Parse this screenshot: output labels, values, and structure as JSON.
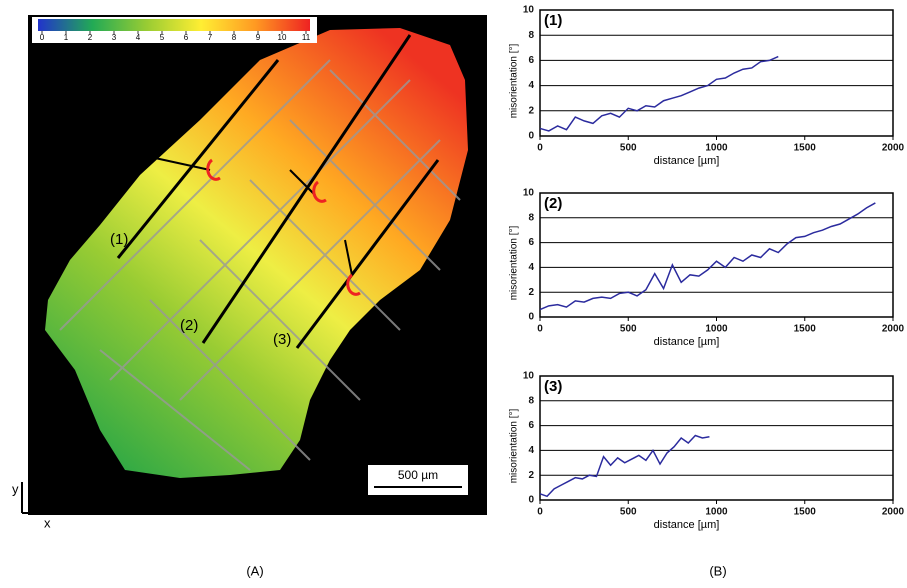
{
  "chart_data": [
    {
      "type": "line",
      "title": "(1)",
      "x_label": "distance [µm]",
      "y_label": "misorientation [°]",
      "xlim": [
        0,
        2000
      ],
      "xticks": [
        0,
        500,
        1000,
        1500,
        2000
      ],
      "ylim": [
        0,
        10
      ],
      "yticks": [
        0,
        2,
        4,
        6,
        8,
        10
      ],
      "grid": true,
      "series": [
        {
          "color": "#2b2b9e",
          "x": [
            0,
            50,
            100,
            150,
            200,
            250,
            300,
            350,
            400,
            450,
            500,
            550,
            600,
            650,
            700,
            750,
            800,
            850,
            900,
            950,
            1000,
            1050,
            1100,
            1150,
            1200,
            1250,
            1300,
            1350
          ],
          "values": [
            0.6,
            0.4,
            0.8,
            0.5,
            1.5,
            1.2,
            1.0,
            1.6,
            1.8,
            1.5,
            2.2,
            2.0,
            2.4,
            2.3,
            2.8,
            3.0,
            3.2,
            3.5,
            3.8,
            4.0,
            4.5,
            4.6,
            5.0,
            5.3,
            5.4,
            5.9,
            6.0,
            6.3
          ]
        }
      ]
    },
    {
      "type": "line",
      "title": "(2)",
      "x_label": "distance [µm]",
      "y_label": "misorientation [°]",
      "xlim": [
        0,
        2000
      ],
      "xticks": [
        0,
        500,
        1000,
        1500,
        2000
      ],
      "ylim": [
        0,
        10
      ],
      "yticks": [
        0,
        2,
        4,
        6,
        8,
        10
      ],
      "grid": true,
      "series": [
        {
          "color": "#2b2b9e",
          "x": [
            0,
            50,
            100,
            150,
            200,
            250,
            300,
            350,
            400,
            450,
            500,
            550,
            600,
            650,
            700,
            750,
            800,
            850,
            900,
            950,
            1000,
            1050,
            1100,
            1150,
            1200,
            1250,
            1300,
            1350,
            1400,
            1450,
            1500,
            1550,
            1600,
            1650,
            1700,
            1750,
            1800,
            1850,
            1900
          ],
          "values": [
            0.6,
            0.9,
            1.0,
            0.8,
            1.3,
            1.2,
            1.5,
            1.6,
            1.5,
            1.9,
            2.0,
            1.7,
            2.2,
            3.5,
            2.3,
            4.2,
            2.8,
            3.4,
            3.3,
            3.8,
            4.5,
            4.0,
            4.8,
            4.5,
            5.0,
            4.8,
            5.5,
            5.2,
            5.9,
            6.4,
            6.5,
            6.8,
            7.0,
            7.3,
            7.5,
            7.9,
            8.3,
            8.8,
            9.2
          ]
        }
      ]
    },
    {
      "type": "line",
      "title": "(3)",
      "x_label": "distance [µm]",
      "y_label": "misorientation [°]",
      "xlim": [
        0,
        2000
      ],
      "xticks": [
        0,
        500,
        1000,
        1500,
        2000
      ],
      "ylim": [
        0,
        10
      ],
      "yticks": [
        0,
        2,
        4,
        6,
        8,
        10
      ],
      "grid": true,
      "series": [
        {
          "color": "#2b2b9e",
          "x": [
            0,
            40,
            80,
            120,
            160,
            200,
            240,
            280,
            320,
            360,
            400,
            440,
            480,
            520,
            560,
            600,
            640,
            680,
            720,
            760,
            800,
            840,
            880,
            920,
            960
          ],
          "values": [
            0.5,
            0.3,
            0.9,
            1.2,
            1.5,
            1.8,
            1.7,
            2.0,
            1.9,
            3.5,
            2.8,
            3.4,
            3.0,
            3.3,
            3.6,
            3.2,
            4.0,
            2.9,
            3.8,
            4.3,
            5.0,
            4.6,
            5.2,
            5.0,
            5.1
          ]
        }
      ]
    }
  ],
  "map": {
    "colorbar": {
      "lim": [
        0,
        11
      ],
      "ticks": [
        0,
        1,
        2,
        3,
        4,
        5,
        6,
        7,
        8,
        9,
        10,
        11
      ],
      "colors": [
        "#2233cc",
        "#22aa55",
        "#99cc33",
        "#ffee33",
        "#ff9922",
        "#ee2222"
      ]
    },
    "line_labels": [
      "(1)",
      "(2)",
      "(3)"
    ],
    "scale_bar": "500 µm",
    "axis_y": "y",
    "axis_x": "x"
  },
  "captions": [
    "(A)",
    "(B)"
  ]
}
